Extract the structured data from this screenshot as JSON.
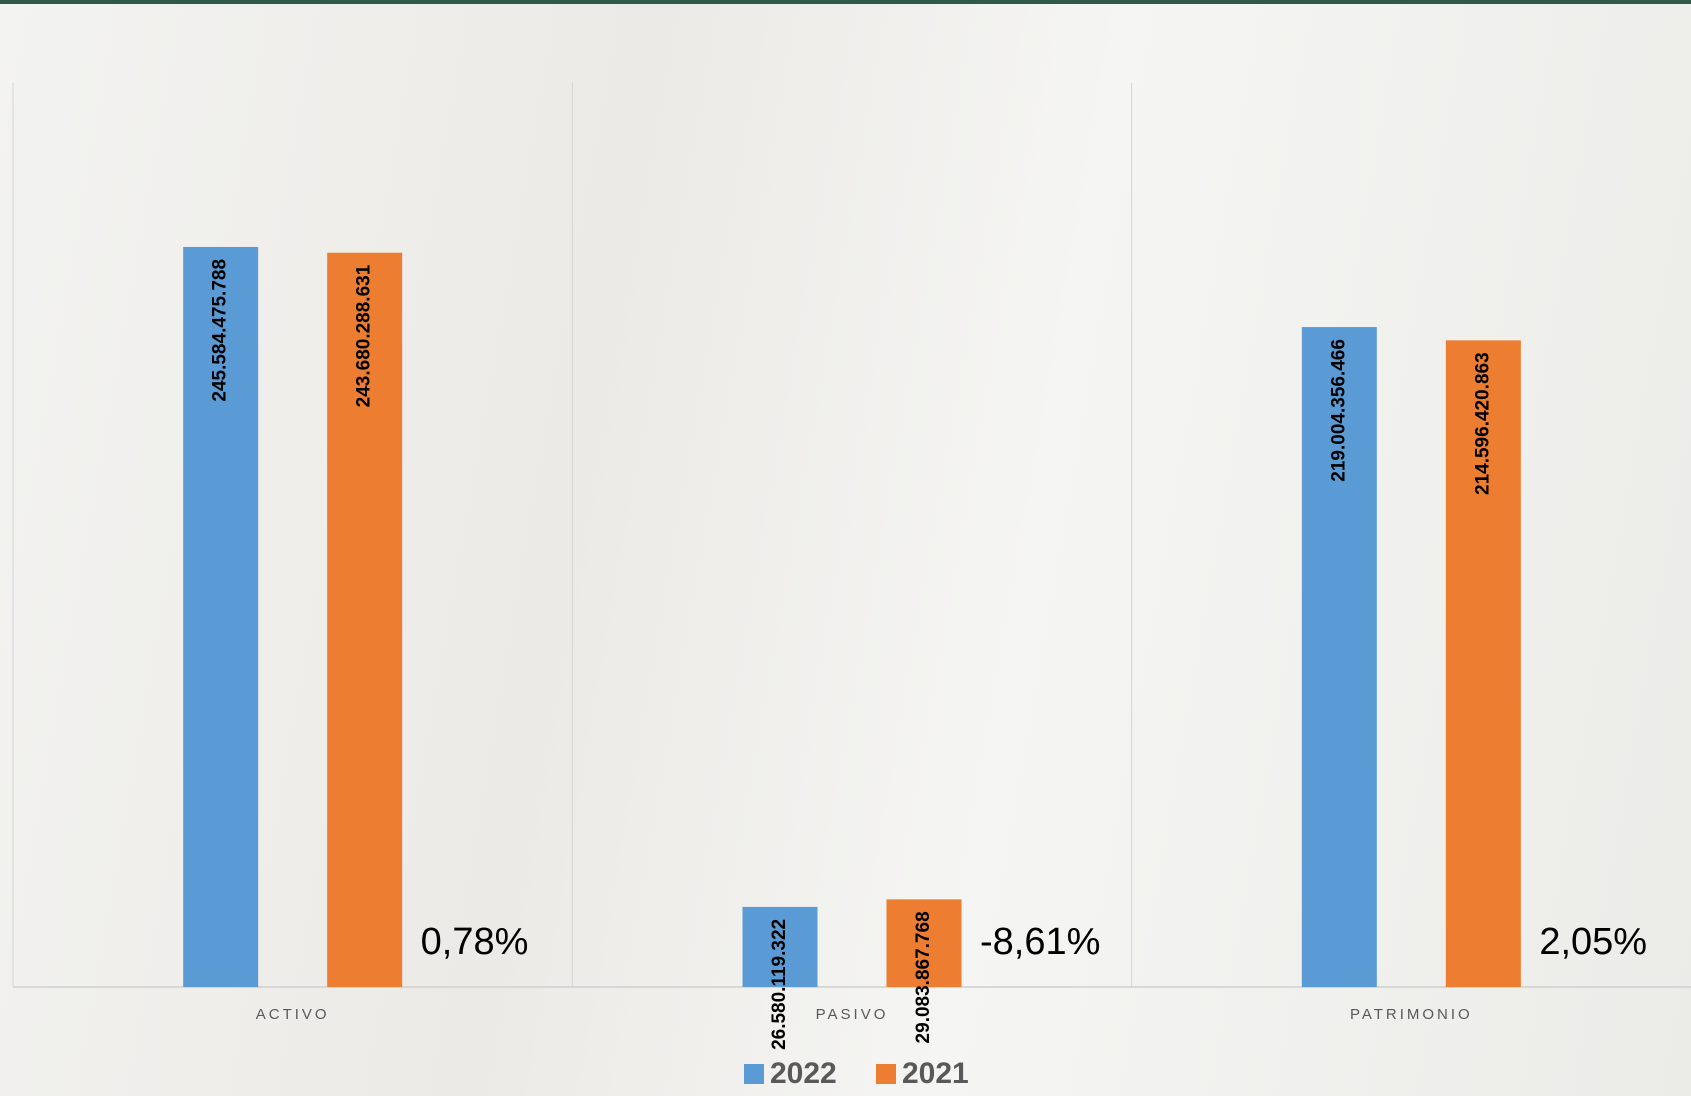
{
  "chart_data": {
    "type": "bar",
    "categories": [
      "ACTIVO",
      "PASIVO",
      "PATRIMONIO"
    ],
    "series": [
      {
        "name": "2022",
        "color": "#5b9bd5",
        "values": [
          245584475788,
          26580119322,
          219004356466
        ],
        "value_labels": [
          "245.584.475.788",
          "26.580.119.322",
          "219.004.356.466"
        ]
      },
      {
        "name": "2021",
        "color": "#ed7d31",
        "values": [
          243680288631,
          29083867768,
          214596420863
        ],
        "value_labels": [
          "243.680.288.631",
          "29.083.867.768",
          "214.596.420.863"
        ]
      }
    ],
    "annotations": [
      "0,78%",
      "-8,61%",
      "2,05%"
    ],
    "ylim": [
      0,
      300000000000
    ]
  }
}
